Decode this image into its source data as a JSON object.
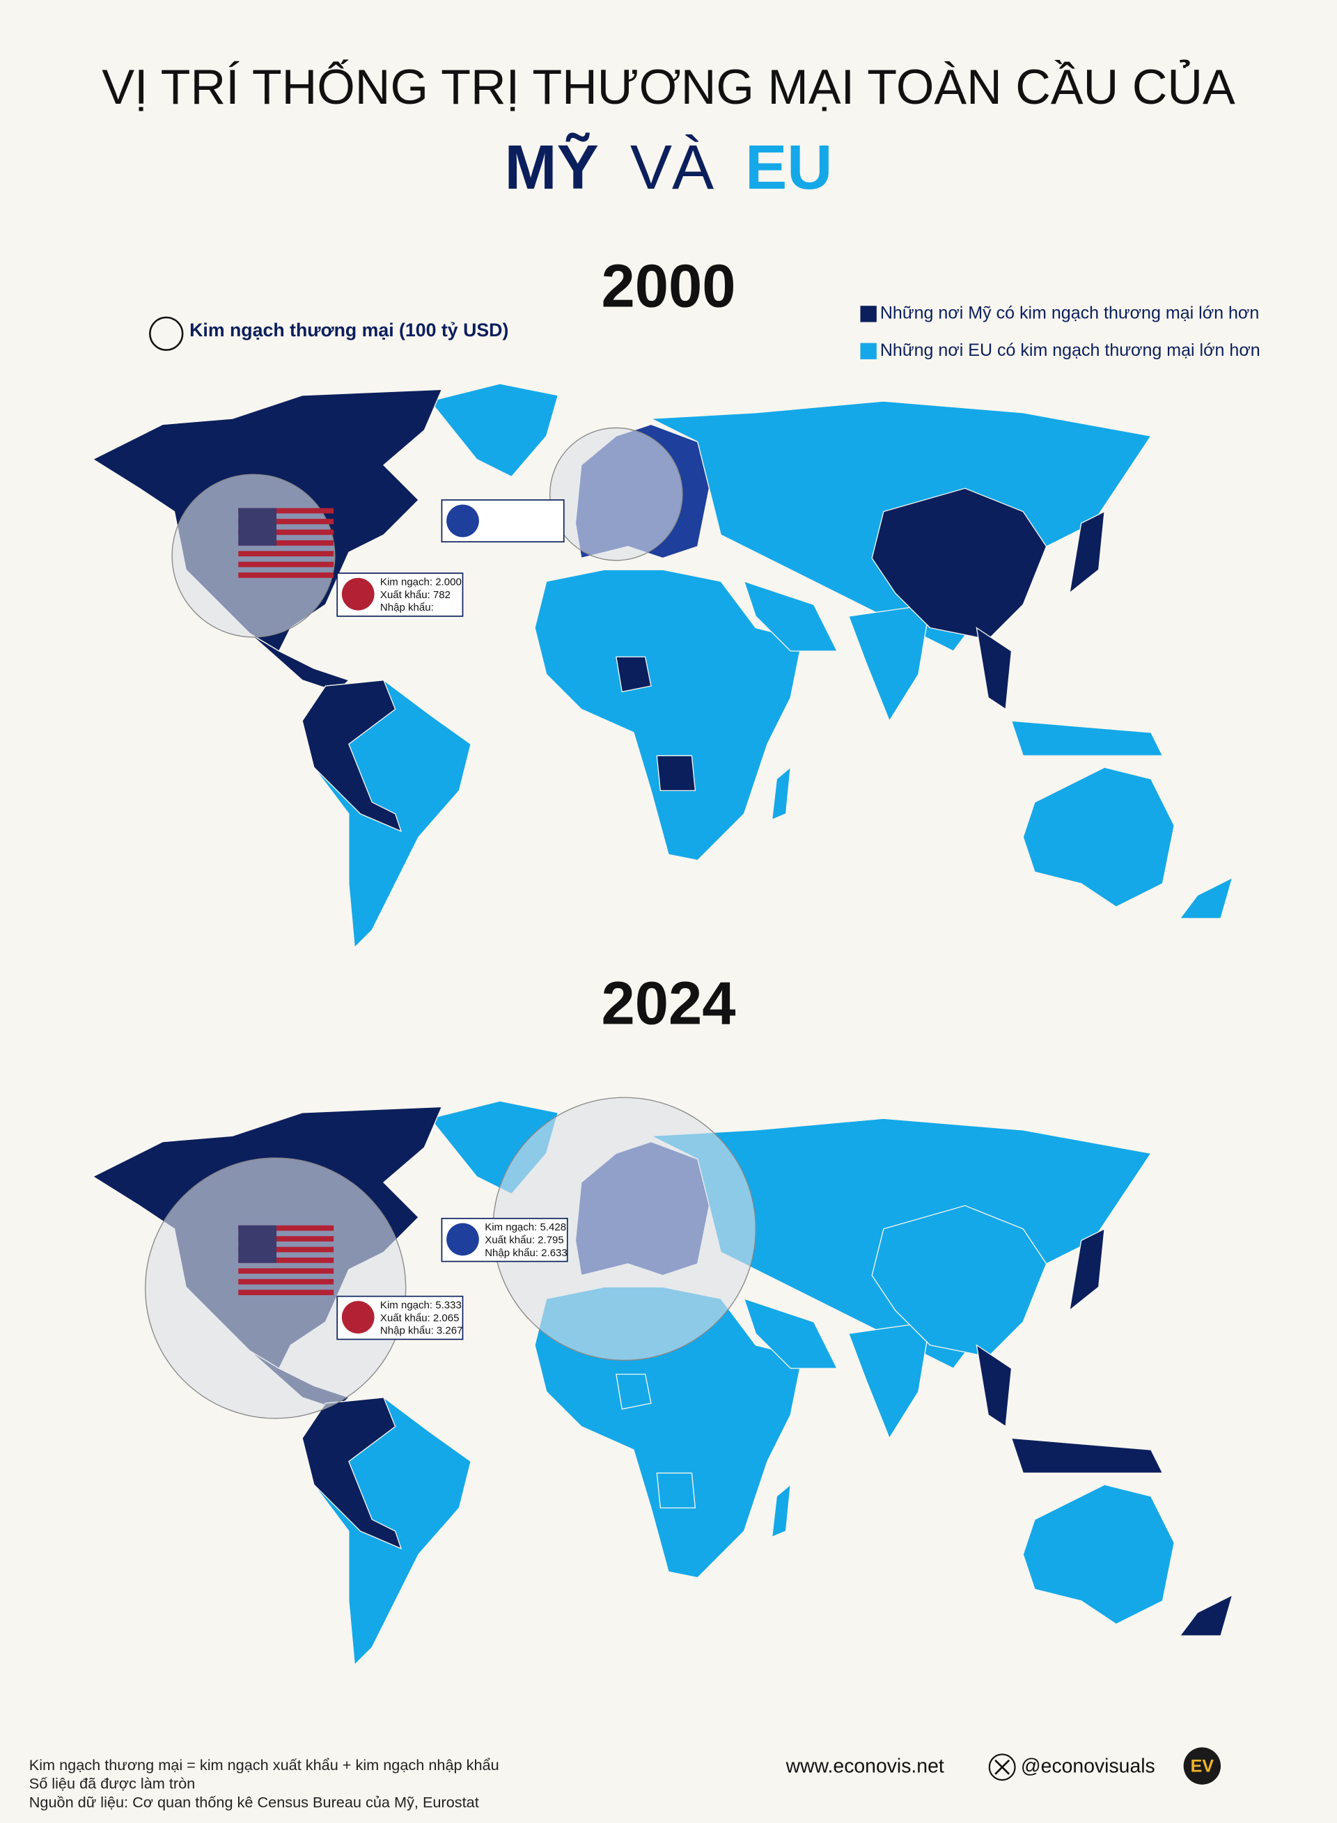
{
  "header": {
    "title_line1": "VỊ TRÍ THỐNG TRỊ THƯƠNG MẠI TOÀN CẦU CỦA",
    "title_us": "MỸ",
    "title_and": "VÀ",
    "title_eu": "EU"
  },
  "legend": {
    "size": "Kim ngạch thương mại (100 tỷ USD)",
    "us": "Những nơi Mỹ có kim ngạch thương mại lớn hơn",
    "eu": "Những nơi EU có kim ngạch thương mại lớn hơn"
  },
  "maps": [
    {
      "year": "2000",
      "us_box": [
        "Kim ngạch: 2.000",
        "Xuất khẩu: 782",
        "Nhập khẩu:"
      ]
    },
    {
      "year": "2024",
      "us_box": [
        "Kim ngạch: 5.333",
        "Xuất khẩu: 2.065",
        "Nhập khẩu: 3.267"
      ],
      "eu_box": [
        "Kim ngạch: 5.428",
        "Xuất khẩu: 2.795",
        "Nhập khẩu: 2.633"
      ]
    }
  ],
  "footer": {
    "notes": [
      "Kim ngạch thương mại = kim ngạch xuất khẩu + kim ngạch nhập khẩu",
      "Số liệu đã được làm tròn",
      "Nguồn dữ liệu: Cơ quan thống kê Census Bureau của Mỹ, Eurostat"
    ],
    "website": "www.econovis.net",
    "handle": "@econovisuals",
    "logo": "EV"
  }
}
